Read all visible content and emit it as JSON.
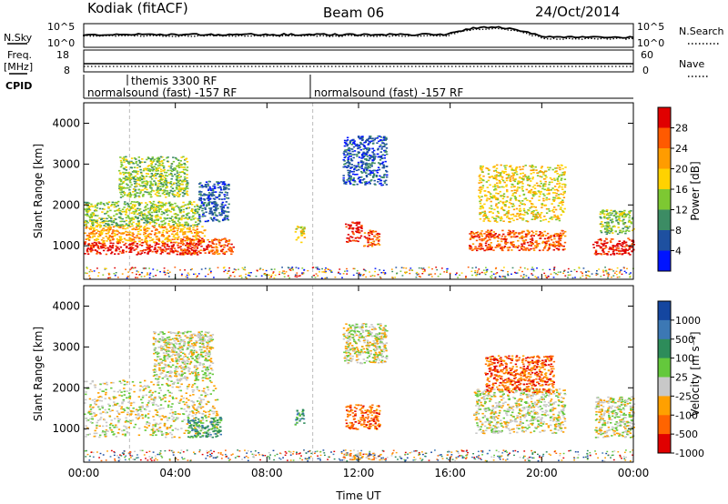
{
  "header": {
    "station": "Kodiak (fitACF)",
    "beam": "Beam 06",
    "date": "24/Oct/2014"
  },
  "noise_panel": {
    "left_label": "N.Sky",
    "right_label": "N.Search",
    "left_ticks": [
      "10^5",
      "10^0"
    ],
    "right_ticks": [
      "10^5",
      "10^0"
    ]
  },
  "freq_panel": {
    "left_label_1": "Freq.",
    "left_label_2": "[MHz]",
    "right_label": "Nave",
    "left_ticks": [
      "18",
      "8"
    ],
    "right_ticks": [
      "60",
      "0"
    ]
  },
  "cpid_panel": {
    "label": "CPID",
    "programs": [
      {
        "name": "normalsound (fast) -157 RF",
        "start_hour": 0
      },
      {
        "name": "themis 3300 RF",
        "start_hour": 2
      },
      {
        "name": "normalsound (fast) -157 RF",
        "start_hour": 10
      }
    ]
  },
  "power_colorbar": {
    "label": "Power [dB]",
    "ticks": [
      "28",
      "24",
      "20",
      "16",
      "12",
      "8",
      "4"
    ],
    "colors": [
      "#e00000",
      "#ff5a00",
      "#ff9c00",
      "#ffd200",
      "#7dc832",
      "#3c8c64",
      "#1e50a0",
      "#0014ff"
    ]
  },
  "velocity_colorbar": {
    "label": "Velocity [m s⁻¹]",
    "ticks": [
      "1000",
      "500",
      "100",
      "25",
      "-25",
      "-100",
      "-500",
      "-1000"
    ],
    "colors": [
      "#1446a0",
      "#3c78b4",
      "#2d8c5a",
      "#64c83c",
      "#c8c8c8",
      "#ffa000",
      "#ff6400",
      "#e00000"
    ]
  },
  "chart_data": {
    "type": "heatmap",
    "x_label": "Time UT",
    "x_ticks": [
      "00:00",
      "04:00",
      "08:00",
      "12:00",
      "16:00",
      "20:00",
      "00:00"
    ],
    "xlim_hours": [
      0,
      24
    ],
    "y_label": "Slant Range [km]",
    "y_ticks": [
      1000,
      2000,
      3000,
      4000
    ],
    "ylim_km": [
      180,
      4500
    ],
    "power_regions": [
      {
        "t0": 0.0,
        "t1": 5.0,
        "r0": 800,
        "r1": 1100,
        "level": 0
      },
      {
        "t0": 0.0,
        "t1": 5.3,
        "r0": 1100,
        "r1": 1500,
        "level": 2
      },
      {
        "t0": 0.0,
        "t1": 5.0,
        "r0": 1500,
        "r1": 2100,
        "level": 4
      },
      {
        "t0": 1.5,
        "t1": 4.5,
        "r0": 2200,
        "r1": 3200,
        "level": 4
      },
      {
        "t0": 4.2,
        "t1": 6.5,
        "r0": 800,
        "r1": 1200,
        "level": 1
      },
      {
        "t0": 5.0,
        "t1": 6.3,
        "r0": 1600,
        "r1": 2600,
        "level": 6
      },
      {
        "t0": 9.2,
        "t1": 9.6,
        "r0": 1100,
        "r1": 1500,
        "level": 3
      },
      {
        "t0": 11.3,
        "t1": 13.2,
        "r0": 2500,
        "r1": 3700,
        "level": 6
      },
      {
        "t0": 11.4,
        "t1": 12.1,
        "r0": 1100,
        "r1": 1600,
        "level": 0
      },
      {
        "t0": 12.2,
        "t1": 12.9,
        "r0": 1000,
        "r1": 1400,
        "level": 1
      },
      {
        "t0": 16.8,
        "t1": 21.0,
        "r0": 900,
        "r1": 1400,
        "level": 1
      },
      {
        "t0": 17.2,
        "t1": 21.0,
        "r0": 1600,
        "r1": 3000,
        "level": 3
      },
      {
        "t0": 22.2,
        "t1": 24.0,
        "r0": 800,
        "r1": 1200,
        "level": 0
      },
      {
        "t0": 22.5,
        "t1": 24.0,
        "r0": 1300,
        "r1": 1900,
        "level": 4
      }
    ],
    "velocity_regions": [
      {
        "t0": 0.0,
        "t1": 5.8,
        "r0": 800,
        "r1": 2200,
        "level": 4
      },
      {
        "t0": 3.0,
        "t1": 5.6,
        "r0": 2200,
        "r1": 3400,
        "level": 4
      },
      {
        "t0": 4.5,
        "t1": 6.0,
        "r0": 800,
        "r1": 1300,
        "level": 2
      },
      {
        "t0": 9.2,
        "t1": 9.6,
        "r0": 1100,
        "r1": 1500,
        "level": 2
      },
      {
        "t0": 11.3,
        "t1": 13.2,
        "r0": 2600,
        "r1": 3600,
        "level": 4
      },
      {
        "t0": 11.4,
        "t1": 12.9,
        "r0": 1000,
        "r1": 1600,
        "level": 6
      },
      {
        "t0": 11.3,
        "t1": 13.0,
        "r0": 250,
        "r1": 420,
        "level": 5
      },
      {
        "t0": 17.0,
        "t1": 21.0,
        "r0": 900,
        "r1": 2000,
        "level": 4
      },
      {
        "t0": 17.5,
        "t1": 20.5,
        "r0": 1900,
        "r1": 2800,
        "level": 6
      },
      {
        "t0": 22.3,
        "t1": 24.0,
        "r0": 800,
        "r1": 1800,
        "level": 4
      }
    ]
  }
}
